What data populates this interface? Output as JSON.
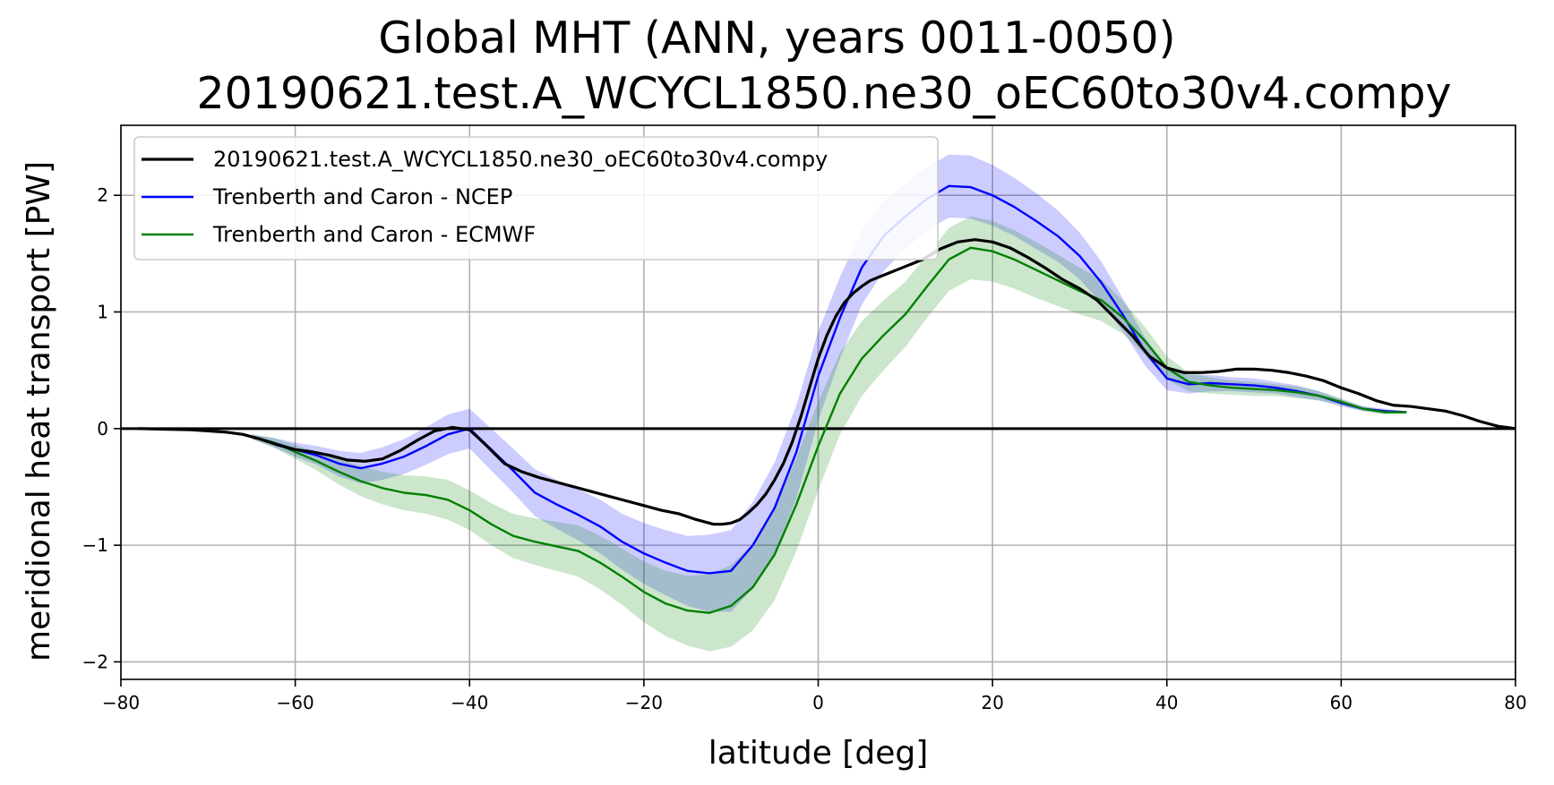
{
  "title_line1": "Global MHT (ANN, years 0011-0050)",
  "title_line2": "20190621.test.A_WCYCL1850.ne30_oEC60to30v4.compy",
  "chart_data": {
    "type": "line",
    "xlabel": "latitude [deg]",
    "ylabel": "meridional heat transport [PW]",
    "xlim": [
      -80,
      80
    ],
    "ylim": [
      -2.15,
      2.6
    ],
    "xticks": [
      -80,
      -60,
      -40,
      -20,
      0,
      20,
      40,
      60,
      80
    ],
    "yticks": [
      -2,
      -1,
      0,
      1,
      2
    ],
    "xtick_labels": [
      "−80",
      "−60",
      "−40",
      "−20",
      "0",
      "20",
      "40",
      "60",
      "80"
    ],
    "ytick_labels": [
      "−2",
      "−1",
      "0",
      "1",
      "2"
    ],
    "grid": true,
    "legend_position": "top-left",
    "series": [
      {
        "name": "20190621.test.A_WCYCL1850.ne30_oEC60to30v4.compy",
        "color": "#000000",
        "x": [
          -78,
          -75,
          -72,
          -70,
          -68,
          -66,
          -64,
          -62,
          -60,
          -58,
          -56,
          -54,
          -52,
          -50,
          -48,
          -46,
          -44,
          -42,
          -40,
          -38,
          -36,
          -34,
          -32,
          -30,
          -28,
          -26,
          -24,
          -22,
          -20,
          -18,
          -16,
          -14,
          -13,
          -12,
          -11,
          -10,
          -9,
          -8,
          -7,
          -6,
          -5,
          -4,
          -3,
          -2,
          -1,
          0,
          1,
          2,
          3,
          4,
          5,
          6,
          7,
          8,
          10,
          12,
          14,
          16,
          18,
          20,
          22,
          24,
          26,
          28,
          30,
          32,
          34,
          36,
          38,
          40,
          42,
          44,
          46,
          48,
          50,
          52,
          54,
          56,
          58,
          60,
          62,
          64,
          65,
          66,
          68,
          70,
          72,
          74,
          76,
          78,
          80
        ],
        "y": [
          0.0,
          -0.005,
          -0.01,
          -0.02,
          -0.03,
          -0.05,
          -0.09,
          -0.14,
          -0.18,
          -0.2,
          -0.23,
          -0.27,
          -0.28,
          -0.26,
          -0.19,
          -0.1,
          -0.02,
          0.01,
          -0.01,
          -0.15,
          -0.3,
          -0.37,
          -0.42,
          -0.46,
          -0.5,
          -0.54,
          -0.58,
          -0.62,
          -0.66,
          -0.7,
          -0.73,
          -0.78,
          -0.8,
          -0.82,
          -0.82,
          -0.81,
          -0.78,
          -0.72,
          -0.65,
          -0.56,
          -0.44,
          -0.3,
          -0.12,
          0.1,
          0.35,
          0.6,
          0.8,
          0.96,
          1.08,
          1.16,
          1.22,
          1.27,
          1.3,
          1.33,
          1.39,
          1.45,
          1.54,
          1.6,
          1.62,
          1.6,
          1.55,
          1.47,
          1.38,
          1.28,
          1.2,
          1.1,
          0.95,
          0.8,
          0.62,
          0.52,
          0.48,
          0.48,
          0.49,
          0.51,
          0.51,
          0.5,
          0.48,
          0.45,
          0.41,
          0.35,
          0.3,
          0.24,
          0.22,
          0.2,
          0.19,
          0.17,
          0.15,
          0.11,
          0.06,
          0.02,
          0.0
        ]
      },
      {
        "name": "Trenberth and Caron - NCEP",
        "color": "#0000ff",
        "band_color": "#0000ff",
        "band_opacity": 0.2,
        "x": [
          -65,
          -62.5,
          -60,
          -57.5,
          -55,
          -52.5,
          -50,
          -47.5,
          -45,
          -42.5,
          -40,
          -37.5,
          -35,
          -32.5,
          -30,
          -27.5,
          -25,
          -22.5,
          -20,
          -17.5,
          -15,
          -12.5,
          -10,
          -7.5,
          -5,
          -2.5,
          0,
          2.5,
          5,
          7.5,
          10,
          12.5,
          15,
          17.5,
          20,
          22.5,
          25,
          27.5,
          30,
          32.5,
          35,
          37.5,
          40,
          42.5,
          45,
          47.5,
          50,
          52.5,
          55,
          57.5,
          60,
          62.5,
          65,
          67.5
        ],
        "y": [
          -0.07,
          -0.12,
          -0.18,
          -0.23,
          -0.3,
          -0.34,
          -0.3,
          -0.24,
          -0.15,
          -0.05,
          0.0,
          -0.18,
          -0.36,
          -0.55,
          -0.65,
          -0.74,
          -0.84,
          -0.97,
          -1.07,
          -1.15,
          -1.22,
          -1.24,
          -1.22,
          -1.0,
          -0.68,
          -0.2,
          0.45,
          0.95,
          1.38,
          1.65,
          1.82,
          1.97,
          2.08,
          2.07,
          2.0,
          1.9,
          1.78,
          1.65,
          1.48,
          1.25,
          0.97,
          0.66,
          0.43,
          0.38,
          0.39,
          0.38,
          0.37,
          0.35,
          0.32,
          0.28,
          0.22,
          0.17,
          0.15,
          0.14
        ],
        "band_halfwidth": [
          0.02,
          0.04,
          0.06,
          0.08,
          0.11,
          0.13,
          0.14,
          0.15,
          0.16,
          0.17,
          0.17,
          0.18,
          0.19,
          0.2,
          0.21,
          0.22,
          0.23,
          0.24,
          0.26,
          0.28,
          0.3,
          0.33,
          0.35,
          0.37,
          0.39,
          0.4,
          0.38,
          0.35,
          0.32,
          0.3,
          0.28,
          0.27,
          0.27,
          0.27,
          0.26,
          0.25,
          0.24,
          0.22,
          0.2,
          0.18,
          0.14,
          0.12,
          0.1,
          0.08,
          0.07,
          0.06,
          0.06,
          0.05,
          0.05,
          0.04,
          0.03,
          0.02,
          0.02,
          0.01
        ]
      },
      {
        "name": "Trenberth and Caron - ECMWF",
        "color": "#008000",
        "band_color": "#008000",
        "band_opacity": 0.2,
        "x": [
          -65,
          -62.5,
          -60,
          -57.5,
          -55,
          -52.5,
          -50,
          -47.5,
          -45,
          -42.5,
          -40,
          -37.5,
          -35,
          -32.5,
          -30,
          -27.5,
          -25,
          -22.5,
          -20,
          -17.5,
          -15,
          -12.5,
          -10,
          -7.5,
          -5,
          -2.5,
          0,
          2.5,
          5,
          7.5,
          10,
          12.5,
          15,
          17.5,
          20,
          22.5,
          25,
          27.5,
          30,
          32.5,
          35,
          37.5,
          40,
          42.5,
          45,
          47.5,
          50,
          52.5,
          55,
          57.5,
          60,
          62.5,
          65,
          67.5
        ],
        "y": [
          -0.07,
          -0.12,
          -0.2,
          -0.28,
          -0.37,
          -0.45,
          -0.51,
          -0.55,
          -0.57,
          -0.61,
          -0.7,
          -0.82,
          -0.92,
          -0.97,
          -1.01,
          -1.05,
          -1.15,
          -1.27,
          -1.4,
          -1.5,
          -1.56,
          -1.58,
          -1.52,
          -1.36,
          -1.08,
          -0.65,
          -0.15,
          0.3,
          0.6,
          0.8,
          0.98,
          1.22,
          1.45,
          1.55,
          1.52,
          1.45,
          1.36,
          1.27,
          1.18,
          1.1,
          0.95,
          0.75,
          0.52,
          0.4,
          0.37,
          0.35,
          0.34,
          0.33,
          0.31,
          0.28,
          0.23,
          0.17,
          0.14,
          0.14
        ],
        "band_halfwidth": [
          0.02,
          0.04,
          0.06,
          0.08,
          0.11,
          0.13,
          0.14,
          0.15,
          0.16,
          0.17,
          0.17,
          0.18,
          0.19,
          0.2,
          0.21,
          0.22,
          0.23,
          0.24,
          0.26,
          0.28,
          0.3,
          0.33,
          0.35,
          0.37,
          0.39,
          0.4,
          0.38,
          0.35,
          0.32,
          0.3,
          0.28,
          0.27,
          0.27,
          0.27,
          0.26,
          0.25,
          0.24,
          0.22,
          0.2,
          0.18,
          0.14,
          0.12,
          0.1,
          0.08,
          0.07,
          0.06,
          0.06,
          0.05,
          0.05,
          0.04,
          0.03,
          0.02,
          0.02,
          0.01
        ]
      }
    ],
    "reference_line": {
      "y": 0,
      "color": "#000000"
    }
  }
}
